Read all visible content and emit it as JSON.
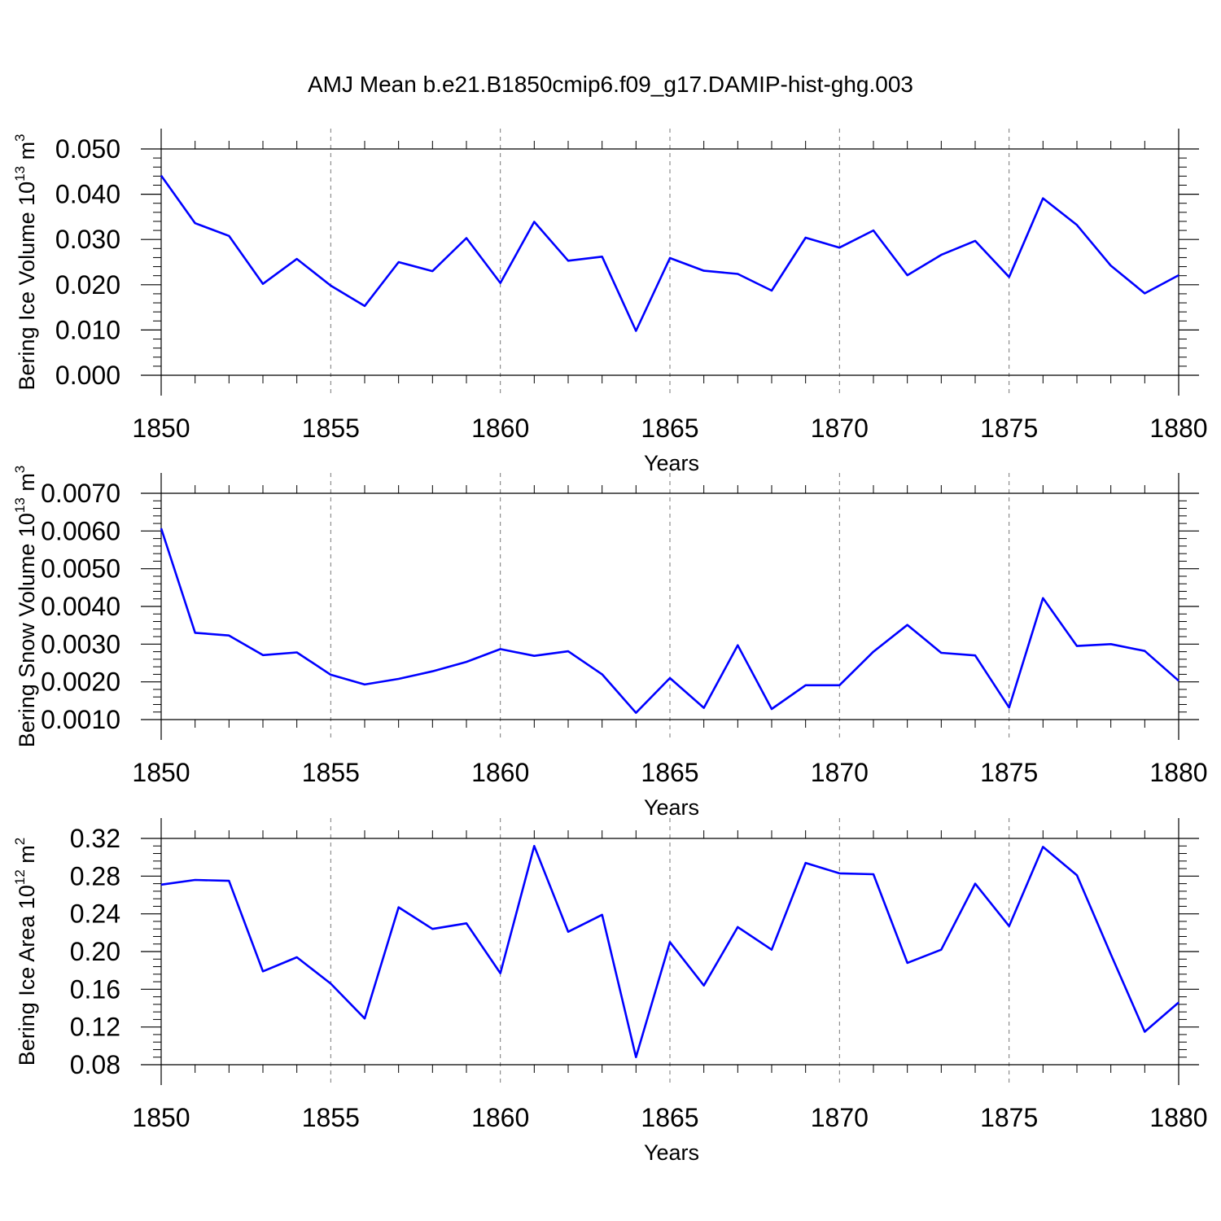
{
  "title": "AMJ Mean b.e21.B1850cmip6.f09_g17.DAMIP-hist-ghg.003",
  "chart_data": [
    {
      "type": "line",
      "xlabel": "Years",
      "ylabel": {
        "main": "Bering Ice Volume 10",
        "exp": "13",
        "unit": " m",
        "unit_exp": "3"
      },
      "xlim": [
        1850,
        1880
      ],
      "ylim": [
        0.0,
        0.05
      ],
      "xticks": [
        "1850",
        "1855",
        "1860",
        "1865",
        "1870",
        "1875",
        "1880"
      ],
      "yticks": [
        "0.000",
        "0.010",
        "0.020",
        "0.030",
        "0.040",
        "0.050"
      ],
      "grid": "dashed vertical lines at major x ticks",
      "color": "#0000ff",
      "x": [
        1850,
        1851,
        1852,
        1853,
        1854,
        1855,
        1856,
        1857,
        1858,
        1859,
        1860,
        1861,
        1862,
        1863,
        1864,
        1865,
        1866,
        1867,
        1868,
        1869,
        1870,
        1871,
        1872,
        1873,
        1874,
        1875,
        1876,
        1877,
        1878,
        1879,
        1880
      ],
      "values": [
        0.0441,
        0.0336,
        0.0308,
        0.0202,
        0.0257,
        0.0198,
        0.0153,
        0.025,
        0.023,
        0.0303,
        0.0204,
        0.0339,
        0.0253,
        0.0262,
        0.0098,
        0.0259,
        0.0231,
        0.0224,
        0.0187,
        0.0304,
        0.0282,
        0.032,
        0.0221,
        0.0266,
        0.0297,
        0.0217,
        0.0391,
        0.0332,
        0.0242,
        0.0181,
        0.0221
      ]
    },
    {
      "type": "line",
      "xlabel": "Years",
      "ylabel": {
        "main": "Bering Snow Volume 10",
        "exp": "13",
        "unit": " m",
        "unit_exp": "3"
      },
      "xlim": [
        1850,
        1880
      ],
      "ylim": [
        0.001,
        0.007
      ],
      "xticks": [
        "1850",
        "1855",
        "1860",
        "1865",
        "1870",
        "1875",
        "1880"
      ],
      "yticks": [
        "0.0010",
        "0.0020",
        "0.0030",
        "0.0040",
        "0.0050",
        "0.0060",
        "0.0070"
      ],
      "grid": "dashed vertical lines at major x ticks",
      "color": "#0000ff",
      "x": [
        1850,
        1851,
        1852,
        1853,
        1854,
        1855,
        1856,
        1857,
        1858,
        1859,
        1860,
        1861,
        1862,
        1863,
        1864,
        1865,
        1866,
        1867,
        1868,
        1869,
        1870,
        1871,
        1872,
        1873,
        1874,
        1875,
        1876,
        1877,
        1878,
        1879,
        1880
      ],
      "values": [
        0.00607,
        0.0033,
        0.00323,
        0.00271,
        0.00278,
        0.00219,
        0.00193,
        0.00208,
        0.00228,
        0.00253,
        0.00287,
        0.00269,
        0.00281,
        0.0022,
        0.00118,
        0.0021,
        0.00131,
        0.00297,
        0.00128,
        0.00191,
        0.00191,
        0.0028,
        0.00351,
        0.00277,
        0.0027,
        0.00132,
        0.00422,
        0.00295,
        0.003,
        0.00282,
        0.00203
      ]
    },
    {
      "type": "line",
      "xlabel": "Years",
      "ylabel": {
        "main": "Bering Ice Area 10",
        "exp": "12",
        "unit": " m",
        "unit_exp": "2"
      },
      "xlim": [
        1850,
        1880
      ],
      "ylim": [
        0.08,
        0.32
      ],
      "xticks": [
        "1850",
        "1855",
        "1860",
        "1865",
        "1870",
        "1875",
        "1880"
      ],
      "yticks": [
        "0.08",
        "0.12",
        "0.16",
        "0.20",
        "0.24",
        "0.28",
        "0.32"
      ],
      "grid": "dashed vertical lines at major x ticks",
      "color": "#0000ff",
      "x": [
        1850,
        1851,
        1852,
        1853,
        1854,
        1855,
        1856,
        1857,
        1858,
        1859,
        1860,
        1861,
        1862,
        1863,
        1864,
        1865,
        1866,
        1867,
        1868,
        1869,
        1870,
        1871,
        1872,
        1873,
        1874,
        1875,
        1876,
        1877,
        1878,
        1879,
        1880
      ],
      "values": [
        0.271,
        0.276,
        0.275,
        0.179,
        0.194,
        0.166,
        0.129,
        0.247,
        0.224,
        0.23,
        0.177,
        0.312,
        0.221,
        0.239,
        0.088,
        0.21,
        0.164,
        0.226,
        0.202,
        0.294,
        0.283,
        0.282,
        0.188,
        0.202,
        0.272,
        0.227,
        0.311,
        0.281,
        0.197,
        0.115,
        0.146
      ]
    }
  ]
}
